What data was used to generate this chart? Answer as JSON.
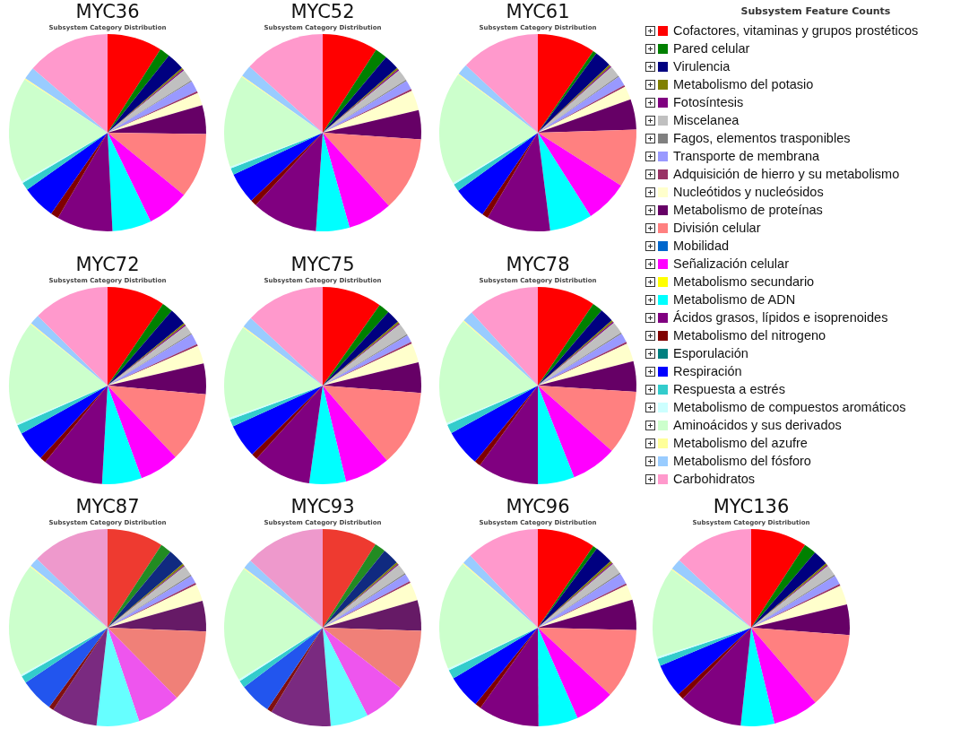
{
  "chart_data": [
    {
      "type": "pie",
      "title": "MYC36",
      "subtitle": "Subsystem Category Distribution",
      "legend": "right",
      "legend_title": "Subsystem Feature Counts",
      "categories": [
        "Cofactores, vitaminas y grupos prostéticos",
        "Pared celular",
        "Virulencia",
        "Metabolismo del potasio",
        "Fotosíntesis",
        "Miscelanea",
        "Fagos, elementos trasponibles",
        "Transporte de membrana",
        "Adquisición de hierro y su metabolismo",
        "Nucleótidos y nucleósidos",
        "Metabolismo de proteínas",
        "División celular",
        "Mobilidad",
        "Señalización celular",
        "Metabolismo secundario",
        "Metabolismo de ADN",
        "Ácidos grasos, lípidos e isoprenoides",
        "Metabolismo del nitrogeno",
        "Esporulación",
        "Respiración",
        "Respuesta a estrés",
        "Metabolismo de compuestos aromáticos",
        "Aminoácidos y sus derivados",
        "Metabolismo del azufre",
        "Metabolismo del fósforo",
        "Carbohidratos"
      ],
      "values": [
        9,
        1.7,
        2.9,
        0.3,
        0.2,
        2,
        0.2,
        1.8,
        0.3,
        2.1,
        4.7,
        10.7,
        0,
        6.9,
        0,
        6.4,
        9.2,
        1.3,
        0,
        5.5,
        1.3,
        0.3,
        17.3,
        0.2,
        2,
        13.7
      ],
      "colors": [
        "#ff0000",
        "#008000",
        "#000080",
        "#808000",
        "#800080",
        "#c0c0c0",
        "#808080",
        "#9999ff",
        "#993366",
        "#ffffcc",
        "#660066",
        "#ff8080",
        "#0066cc",
        "#ff00ff",
        "#ffff00",
        "#00ffff",
        "#800080",
        "#800000",
        "#008080",
        "#0000ff",
        "#33cccc",
        "#ccffff",
        "#ccffcc",
        "#ffff99",
        "#99ccff",
        "#ff99cc"
      ]
    },
    {
      "type": "pie",
      "title": "MYC52",
      "subtitle": "Subsystem Category Distribution",
      "categories": [
        null,
        null,
        null,
        null,
        null,
        null,
        null,
        null,
        null,
        null,
        null,
        null,
        null,
        null,
        null,
        null,
        null,
        null,
        null,
        null,
        null,
        null,
        null,
        null,
        null,
        null
      ],
      "values": [
        9.1,
        2,
        2.5,
        0.3,
        0.2,
        1.9,
        0.2,
        1.5,
        0.3,
        3.3,
        4.8,
        12.2,
        0,
        7.3,
        0,
        5.5,
        10.8,
        1,
        0,
        5.1,
        1.1,
        0.3,
        15.2,
        0.2,
        1.9,
        13.3
      ],
      "colors": [
        "#ff0000",
        "#008000",
        "#000080",
        "#808000",
        "#800080",
        "#c0c0c0",
        "#808080",
        "#9999ff",
        "#993366",
        "#ffffcc",
        "#660066",
        "#ff8080",
        "#0066cc",
        "#ff00ff",
        "#ffff00",
        "#00ffff",
        "#800080",
        "#800000",
        "#008080",
        "#0000ff",
        "#33cccc",
        "#ccffff",
        "#ccffcc",
        "#ffff99",
        "#99ccff",
        "#ff99cc"
      ]
    },
    {
      "type": "pie",
      "title": "MYC61",
      "subtitle": "Subsystem Category Distribution",
      "categories": [
        null,
        null,
        null,
        null,
        null,
        null,
        null,
        null,
        null,
        null,
        null,
        null,
        null,
        null,
        null,
        null,
        null,
        null,
        null,
        null,
        null,
        null,
        null,
        null,
        null,
        null
      ],
      "values": [
        9.5,
        0.6,
        2.8,
        0.3,
        0.2,
        1.8,
        0.2,
        1.6,
        0.3,
        2.2,
        5,
        9.5,
        0,
        7,
        0,
        7,
        10.5,
        1,
        0,
        5.5,
        1.2,
        0.3,
        18.5,
        0.2,
        1.8,
        13
      ],
      "colors": [
        "#ff0000",
        "#008000",
        "#000080",
        "#808000",
        "#800080",
        "#c0c0c0",
        "#808080",
        "#9999ff",
        "#993366",
        "#ffffcc",
        "#660066",
        "#ff8080",
        "#0066cc",
        "#ff00ff",
        "#ffff00",
        "#00ffff",
        "#800080",
        "#800000",
        "#008080",
        "#0000ff",
        "#33cccc",
        "#ccffff",
        "#ccffcc",
        "#ffff99",
        "#99ccff",
        "#ff99cc"
      ]
    },
    {
      "type": "pie",
      "title": "MYC72",
      "subtitle": "Subsystem Category Distribution",
      "categories": [
        null,
        null,
        null,
        null,
        null,
        null,
        null,
        null,
        null,
        null,
        null,
        null,
        null,
        null,
        null,
        null,
        null,
        null,
        null,
        null,
        null,
        null,
        null,
        null,
        null,
        null
      ],
      "values": [
        9.5,
        1.8,
        2.8,
        0.3,
        0.2,
        1.5,
        0.2,
        1.8,
        0.3,
        3,
        5,
        11.5,
        0,
        6.5,
        0,
        6.5,
        10,
        1,
        0,
        5,
        1.5,
        0.3,
        17,
        0.2,
        1.6,
        12.5
      ],
      "colors": [
        "#ff0000",
        "#008000",
        "#000080",
        "#808000",
        "#800080",
        "#c0c0c0",
        "#808080",
        "#9999ff",
        "#993366",
        "#ffffcc",
        "#660066",
        "#ff8080",
        "#0066cc",
        "#ff00ff",
        "#ffff00",
        "#00ffff",
        "#800080",
        "#800000",
        "#008080",
        "#0000ff",
        "#33cccc",
        "#ccffff",
        "#ccffcc",
        "#ffff99",
        "#99ccff",
        "#ff99cc"
      ]
    },
    {
      "type": "pie",
      "title": "MYC75",
      "subtitle": "Subsystem Category Distribution",
      "categories": [
        null,
        null,
        null,
        null,
        null,
        null,
        null,
        null,
        null,
        null,
        null,
        null,
        null,
        null,
        null,
        null,
        null,
        null,
        null,
        null,
        null,
        null,
        null,
        null,
        null,
        null
      ],
      "values": [
        9.8,
        1.8,
        2.2,
        0.3,
        0.2,
        2,
        0.2,
        1.2,
        0.3,
        3.2,
        5,
        12.5,
        0,
        7.5,
        0,
        6,
        9.5,
        1,
        0,
        5.5,
        1.2,
        0.3,
        15.3,
        0.2,
        1.8,
        13
      ],
      "colors": [
        "#ff0000",
        "#008000",
        "#000080",
        "#808000",
        "#800080",
        "#c0c0c0",
        "#808080",
        "#9999ff",
        "#993366",
        "#ffffcc",
        "#660066",
        "#ff8080",
        "#0066cc",
        "#ff00ff",
        "#ffff00",
        "#00ffff",
        "#800080",
        "#800000",
        "#008080",
        "#0000ff",
        "#33cccc",
        "#ccffff",
        "#ccffcc",
        "#ffff99",
        "#99ccff",
        "#ff99cc"
      ]
    },
    {
      "type": "pie",
      "title": "MYC78",
      "subtitle": "Subsystem Category Distribution",
      "categories": [
        null,
        null,
        null,
        null,
        null,
        null,
        null,
        null,
        null,
        null,
        null,
        null,
        null,
        null,
        null,
        null,
        null,
        null,
        null,
        null,
        null,
        null,
        null,
        null,
        null,
        null
      ],
      "values": [
        9.5,
        1.7,
        2.3,
        0.3,
        0.2,
        2,
        0.2,
        1.5,
        0.3,
        3,
        5,
        10.5,
        0,
        7.5,
        0,
        6,
        10,
        1,
        0,
        6,
        1.5,
        0.3,
        17.5,
        0.2,
        1.8,
        11.7
      ],
      "colors": [
        "#ff0000",
        "#008000",
        "#000080",
        "#808000",
        "#800080",
        "#c0c0c0",
        "#808080",
        "#9999ff",
        "#993366",
        "#ffffcc",
        "#660066",
        "#ff8080",
        "#0066cc",
        "#ff00ff",
        "#ffff00",
        "#00ffff",
        "#800080",
        "#800000",
        "#008080",
        "#0000ff",
        "#33cccc",
        "#ccffff",
        "#ccffcc",
        "#ffff99",
        "#99ccff",
        "#ff99cc"
      ]
    },
    {
      "type": "pie",
      "title": "MYC87",
      "subtitle": "Subsystem Category Distribution",
      "categories": [
        null,
        null,
        null,
        null,
        null,
        null,
        null,
        null,
        null,
        null,
        null,
        null,
        null,
        null,
        null,
        null,
        null,
        null,
        null,
        null,
        null,
        null,
        null,
        null,
        null,
        null
      ],
      "values": [
        9.2,
        1.8,
        2.8,
        0.3,
        0.2,
        1.7,
        0.2,
        1.3,
        0.3,
        2.8,
        5,
        12,
        0,
        7.2,
        0,
        7,
        7.5,
        0.8,
        0,
        5.5,
        1.2,
        0.3,
        18.5,
        0.2,
        1.5,
        12.7
      ],
      "colors": [
        "#ee3a30",
        "#228b22",
        "#102a80",
        "#808000",
        "#802080",
        "#c0c0c0",
        "#808080",
        "#9999ff",
        "#993366",
        "#ffffcc",
        "#661a66",
        "#f08078",
        "#0066cc",
        "#ee55ee",
        "#ffff00",
        "#66ffff",
        "#7a2a80",
        "#801010",
        "#008080",
        "#2255ee",
        "#33cccc",
        "#ccffff",
        "#ccffcc",
        "#ffff99",
        "#99ccff",
        "#ee99cc"
      ]
    },
    {
      "type": "pie",
      "title": "MYC93",
      "subtitle": "Subsystem Category Distribution",
      "categories": [
        null,
        null,
        null,
        null,
        null,
        null,
        null,
        null,
        null,
        null,
        null,
        null,
        null,
        null,
        null,
        null,
        null,
        null,
        null,
        null,
        null,
        null,
        null,
        null,
        null,
        null
      ],
      "values": [
        9,
        1.8,
        2.7,
        0.3,
        0.2,
        1.7,
        0.2,
        1.3,
        0.3,
        3,
        5,
        10,
        0,
        7,
        0,
        6.2,
        10,
        0.8,
        0,
        5.2,
        1.2,
        0.3,
        19,
        0.2,
        1.5,
        13.1
      ],
      "colors": [
        "#ee3a30",
        "#228b22",
        "#102a80",
        "#808000",
        "#802080",
        "#c0c0c0",
        "#808080",
        "#9999ff",
        "#993366",
        "#ffffcc",
        "#661a66",
        "#f08078",
        "#0066cc",
        "#ee55ee",
        "#ffff00",
        "#66ffff",
        "#7a2a80",
        "#801010",
        "#008080",
        "#2255ee",
        "#33cccc",
        "#ccffff",
        "#ccffcc",
        "#ffff99",
        "#99ccff",
        "#ee99cc"
      ]
    },
    {
      "type": "pie",
      "title": "MYC96",
      "subtitle": "Subsystem Category Distribution",
      "categories": [
        null,
        null,
        null,
        null,
        null,
        null,
        null,
        null,
        null,
        null,
        null,
        null,
        null,
        null,
        null,
        null,
        null,
        null,
        null,
        null,
        null,
        null,
        null,
        null,
        null,
        null
      ],
      "values": [
        9.5,
        0.7,
        3,
        0.4,
        0.2,
        1.8,
        0.2,
        1.8,
        0.3,
        2.5,
        5,
        11.5,
        0,
        6.5,
        0,
        6.5,
        10,
        1,
        0,
        5.5,
        1.5,
        0.3,
        18,
        0.2,
        1.6,
        12
      ],
      "colors": [
        "#ff0000",
        "#008000",
        "#000080",
        "#808000",
        "#800080",
        "#c0c0c0",
        "#808080",
        "#9999ff",
        "#993366",
        "#ffffcc",
        "#660066",
        "#ff8080",
        "#0066cc",
        "#ff00ff",
        "#ffff00",
        "#00ffff",
        "#800080",
        "#800000",
        "#008080",
        "#0000ff",
        "#33cccc",
        "#ccffff",
        "#ccffcc",
        "#ffff99",
        "#99ccff",
        "#ff99cc"
      ]
    },
    {
      "type": "pie",
      "title": "MYC136",
      "subtitle": "Subsystem Category Distribution",
      "categories": [
        null,
        null,
        null,
        null,
        null,
        null,
        null,
        null,
        null,
        null,
        null,
        null,
        null,
        null,
        null,
        null,
        null,
        null,
        null,
        null,
        null,
        null,
        null,
        null,
        null,
        null
      ],
      "values": [
        9.2,
        2,
        2.5,
        0.3,
        0.2,
        1.8,
        0.2,
        1.5,
        0.3,
        3.2,
        5,
        12.5,
        0,
        7.5,
        0,
        5.5,
        10.5,
        1,
        0,
        5.5,
        1.2,
        0.3,
        14.8,
        0.2,
        1.8,
        13
      ],
      "colors": [
        "#ff0000",
        "#008000",
        "#000080",
        "#808000",
        "#800080",
        "#c0c0c0",
        "#808080",
        "#9999ff",
        "#993366",
        "#ffffcc",
        "#660066",
        "#ff8080",
        "#0066cc",
        "#ff00ff",
        "#ffff00",
        "#00ffff",
        "#800080",
        "#800000",
        "#008080",
        "#0000ff",
        "#33cccc",
        "#ccffff",
        "#ccffcc",
        "#ffff99",
        "#99ccff",
        "#ff99cc"
      ]
    }
  ]
}
